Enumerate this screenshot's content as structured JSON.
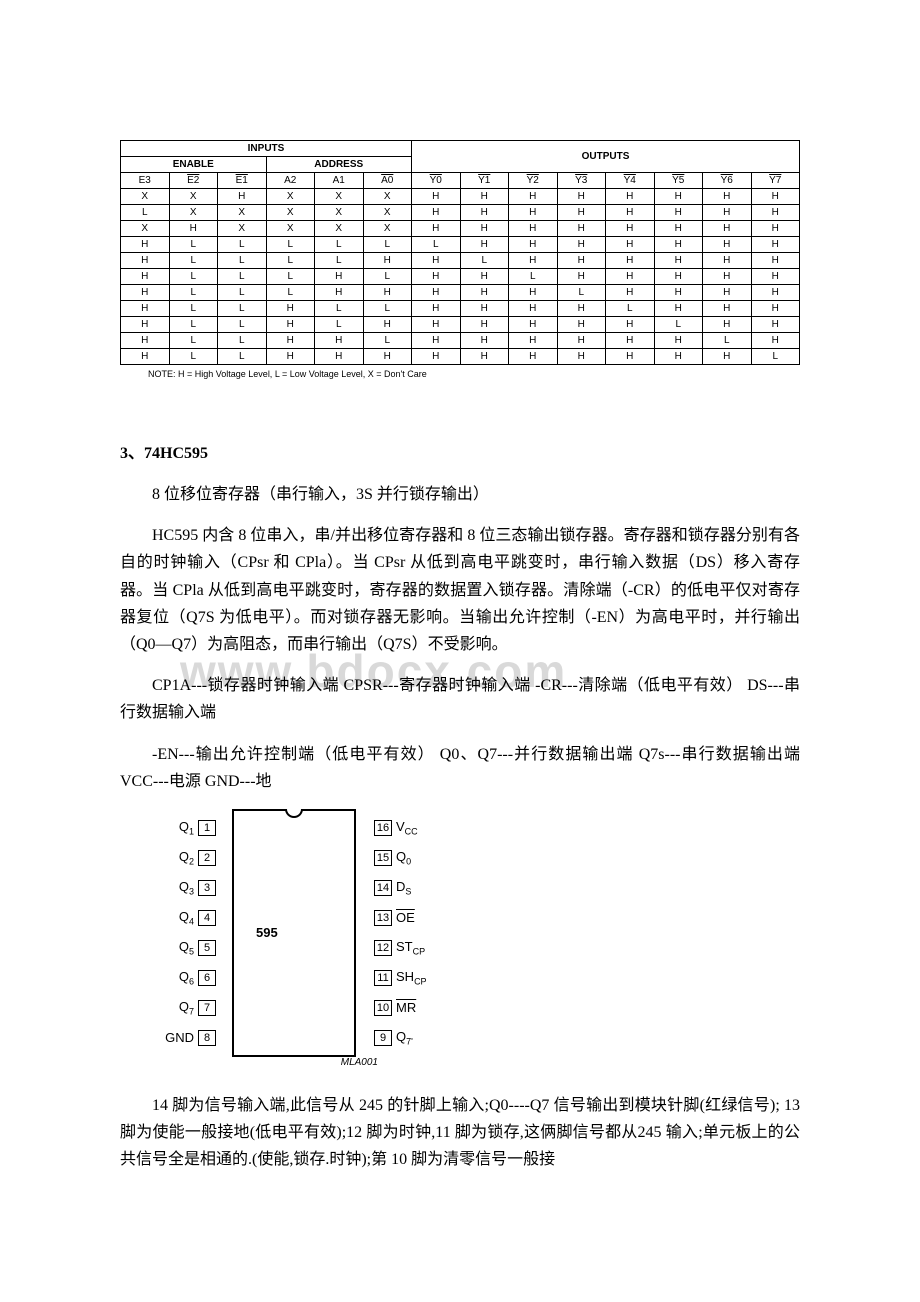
{
  "truth_table": {
    "group_headers": {
      "inputs": "INPUTS",
      "outputs": "OUTPUTS"
    },
    "sub_headers": {
      "enable": "ENABLE",
      "address": "ADDRESS"
    },
    "columns": {
      "e3": "E3",
      "e2": "E2",
      "e1": "E1",
      "a2": "A2",
      "a1": "A1",
      "a0": "A0",
      "y0": "Y0",
      "y1": "Y1",
      "y2": "Y2",
      "y3": "Y3",
      "y4": "Y4",
      "y5": "Y5",
      "y6": "Y6",
      "y7": "Y7"
    },
    "rows": [
      [
        "X",
        "X",
        "H",
        "X",
        "X",
        "X",
        "H",
        "H",
        "H",
        "H",
        "H",
        "H",
        "H",
        "H"
      ],
      [
        "L",
        "X",
        "X",
        "X",
        "X",
        "X",
        "H",
        "H",
        "H",
        "H",
        "H",
        "H",
        "H",
        "H"
      ],
      [
        "X",
        "H",
        "X",
        "X",
        "X",
        "X",
        "H",
        "H",
        "H",
        "H",
        "H",
        "H",
        "H",
        "H"
      ],
      [
        "H",
        "L",
        "L",
        "L",
        "L",
        "L",
        "L",
        "H",
        "H",
        "H",
        "H",
        "H",
        "H",
        "H"
      ],
      [
        "H",
        "L",
        "L",
        "L",
        "L",
        "H",
        "H",
        "L",
        "H",
        "H",
        "H",
        "H",
        "H",
        "H"
      ],
      [
        "H",
        "L",
        "L",
        "L",
        "H",
        "L",
        "H",
        "H",
        "L",
        "H",
        "H",
        "H",
        "H",
        "H"
      ],
      [
        "H",
        "L",
        "L",
        "L",
        "H",
        "H",
        "H",
        "H",
        "H",
        "L",
        "H",
        "H",
        "H",
        "H"
      ],
      [
        "H",
        "L",
        "L",
        "H",
        "L",
        "L",
        "H",
        "H",
        "H",
        "H",
        "L",
        "H",
        "H",
        "H"
      ],
      [
        "H",
        "L",
        "L",
        "H",
        "L",
        "H",
        "H",
        "H",
        "H",
        "H",
        "H",
        "L",
        "H",
        "H"
      ],
      [
        "H",
        "L",
        "L",
        "H",
        "H",
        "L",
        "H",
        "H",
        "H",
        "H",
        "H",
        "H",
        "L",
        "H"
      ],
      [
        "H",
        "L",
        "L",
        "H",
        "H",
        "H",
        "H",
        "H",
        "H",
        "H",
        "H",
        "H",
        "H",
        "L"
      ]
    ],
    "note": "NOTE:  H = High Voltage Level, L = Low Voltage Level, X = Don't Care"
  },
  "section": {
    "heading": "3、74HC595"
  },
  "paragraphs": {
    "p1": "8 位移位寄存器（串行输入，3S 并行锁存输出）",
    "p2": "HC595 内含 8 位串入，串/并出移位寄存器和 8 位三态输出锁存器。寄存器和锁存器分别有各自的时钟输入（CPsr 和 CPla）。当 CPsr 从低到高电平跳变时，串行输入数据（DS）移入寄存器。当 CPla 从低到高电平跳变时，寄存器的数据置入锁存器。清除端（-CR）的低电平仅对寄存器复位（Q7S 为低电平）。而对锁存器无影响。当输出允许控制（-EN）为高电平时，并行输出（Q0—Q7）为高阻态，而串行输出（Q7S）不受影响。",
    "p3": "CP1A---锁存器时钟输入端 CPSR---寄存器时钟输入端 -CR---清除端（低电平有效） DS---串行数据输入端",
    "p4": "-EN---输出允许控制端（低电平有效） Q0、Q7---并行数据输出端 Q7s---串行数据输出端 VCC---电源 GND---地",
    "p5": "14 脚为信号输入端,此信号从 245 的针脚上输入;Q0----Q7 信号输出到模块针脚(红绿信号); 13 脚为使能一般接地(低电平有效);12 脚为时钟,11 脚为锁存,这俩脚信号都从245 输入;单元板上的公共信号全是相通的.(使能,锁存.时钟);第 10 脚为清零信号一般接"
  },
  "watermark": "www.bdocx.com",
  "pinout": {
    "chip_label": "595",
    "mla": "MLA001",
    "left": [
      {
        "label": "Q",
        "sub": "1",
        "pin": "1"
      },
      {
        "label": "Q",
        "sub": "2",
        "pin": "2"
      },
      {
        "label": "Q",
        "sub": "3",
        "pin": "3"
      },
      {
        "label": "Q",
        "sub": "4",
        "pin": "4"
      },
      {
        "label": "Q",
        "sub": "5",
        "pin": "5"
      },
      {
        "label": "Q",
        "sub": "6",
        "pin": "6"
      },
      {
        "label": "Q",
        "sub": "7",
        "pin": "7"
      },
      {
        "label": "GND",
        "sub": "",
        "pin": "8"
      }
    ],
    "right": [
      {
        "pin": "16",
        "label": "V",
        "sub": "CC",
        "over": false
      },
      {
        "pin": "15",
        "label": "Q",
        "sub": "0",
        "over": false
      },
      {
        "pin": "14",
        "label": "D",
        "sub": "S",
        "over": false
      },
      {
        "pin": "13",
        "label": "OE",
        "sub": "",
        "over": true
      },
      {
        "pin": "12",
        "label": "ST",
        "sub": "CP",
        "over": false
      },
      {
        "pin": "11",
        "label": "SH",
        "sub": "CP",
        "over": false
      },
      {
        "pin": "10",
        "label": "MR",
        "sub": "",
        "over": true
      },
      {
        "pin": "9",
        "label": "Q",
        "sub": "7'",
        "over": false
      }
    ]
  }
}
